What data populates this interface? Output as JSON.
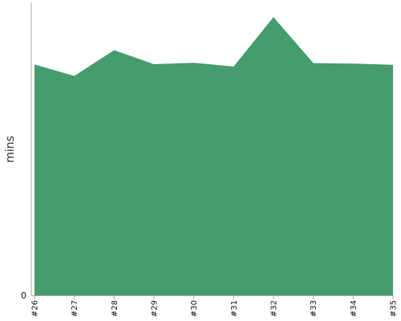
{
  "chart_data": {
    "type": "area",
    "ylabel": "mins",
    "categories": [
      "#26",
      "#27",
      "#28",
      "#29",
      "#30",
      "#31",
      "#32",
      "#33",
      "#34",
      "#35"
    ],
    "values": [
      78.8,
      74.9,
      83.7,
      78.9,
      79.4,
      78.1,
      95.0,
      79.3,
      79.1,
      78.7
    ],
    "ylim": [
      0,
      100
    ],
    "y_tick_labels": [
      "0"
    ],
    "grid": false,
    "colors": {
      "area_fill": "#459c6d",
      "axis": "#aaaaaa",
      "text": "#111111"
    }
  }
}
